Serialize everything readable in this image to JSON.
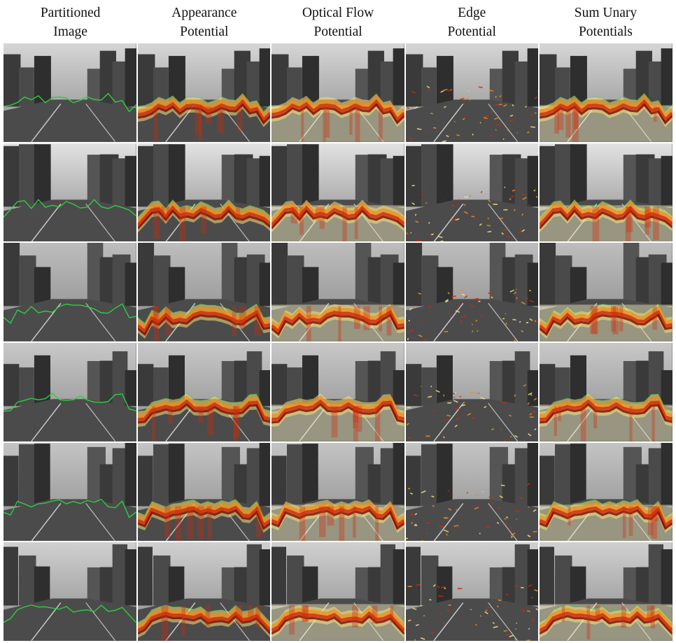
{
  "columns": [
    {
      "line1": "Partitioned",
      "line2": "Image"
    },
    {
      "line1": "Appearance",
      "line2": "Potential"
    },
    {
      "line1": "Optical Flow",
      "line2": "Potential"
    },
    {
      "line1": "Edge",
      "line2": "Potential"
    },
    {
      "line1": "Sum Unary",
      "line2": "Potentials"
    }
  ],
  "rows": [
    {
      "scene": "street-scene-1",
      "sky": "#d6d6d6"
    },
    {
      "scene": "street-scene-2",
      "sky": "#e2e2e2"
    },
    {
      "scene": "street-scene-3",
      "sky": "#bdbdbd"
    },
    {
      "scene": "street-scene-4",
      "sky": "#c8c8c8"
    },
    {
      "scene": "street-scene-5",
      "sky": "#c4c4c4"
    },
    {
      "scene": "street-scene-6",
      "sky": "#d0d0d0"
    }
  ],
  "colors": {
    "boundary": "#2ecc40",
    "heat_dark": "#7a0a00",
    "heat_red": "#d02a0a",
    "heat_orange": "#f08c1a",
    "heat_yellow": "#f4e27a",
    "heat_pale": "#f6f0c0"
  }
}
